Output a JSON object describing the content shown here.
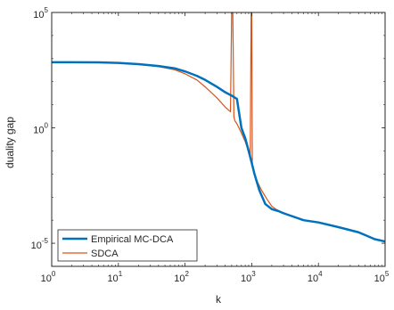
{
  "chart_data": {
    "type": "line",
    "xlabel": "k",
    "ylabel": "duality gap",
    "xscale": "log",
    "yscale": "log",
    "xlim": [
      1,
      100000
    ],
    "ylim": [
      1e-06,
      100000
    ],
    "x_ticks": [
      {
        "base": "10",
        "exp": "0"
      },
      {
        "base": "10",
        "exp": "1"
      },
      {
        "base": "10",
        "exp": "2"
      },
      {
        "base": "10",
        "exp": "3"
      },
      {
        "base": "10",
        "exp": "4"
      },
      {
        "base": "10",
        "exp": "5"
      }
    ],
    "y_ticks": [
      {
        "base": "10",
        "exp": "-5",
        "value": 1e-05
      },
      {
        "base": "10",
        "exp": "0",
        "value": 1
      },
      {
        "base": "10",
        "exp": "5",
        "value": 100000
      }
    ],
    "grid": false,
    "legend_position": "bottom-left",
    "series": [
      {
        "name": "Empirical MC-DCA",
        "color": "#0072BD",
        "x": [
          1,
          2,
          5,
          10,
          20,
          40,
          70,
          100,
          150,
          200,
          300,
          400,
          500,
          600,
          700,
          800,
          900,
          1000,
          1100,
          1300,
          1600,
          2000,
          2500,
          3000,
          4000,
          6000,
          10000,
          20000,
          40000,
          70000,
          100000
        ],
        "y": [
          700,
          700,
          690,
          650,
          580,
          480,
          380,
          280,
          180,
          120,
          60,
          35,
          25,
          18,
          1,
          0.35,
          0.1,
          0.03,
          0.01,
          0.002,
          0.0005,
          0.0003,
          0.00025,
          0.0002,
          0.00015,
          0.0001,
          8e-05,
          5e-05,
          3e-05,
          1.5e-05,
          1.2e-05
        ]
      },
      {
        "name": "SDCA",
        "color": "#D95319",
        "x": [
          1,
          2,
          5,
          10,
          20,
          40,
          70,
          100,
          150,
          200,
          300,
          400,
          480,
          500,
          520,
          540,
          560,
          600,
          700,
          800,
          850,
          900,
          950,
          980,
          1000,
          1020,
          1050,
          1100,
          1200,
          1400,
          1700,
          2000,
          2300,
          2600,
          3000,
          4000,
          6000,
          10000,
          20000,
          40000,
          70000,
          100000
        ],
        "y": [
          700,
          700,
          690,
          650,
          570,
          450,
          330,
          220,
          120,
          60,
          20,
          8,
          5,
          100000,
          100000,
          3,
          2,
          1.5,
          0.6,
          0.25,
          0.15,
          0.08,
          0.05,
          100000,
          100000,
          0.03,
          0.02,
          0.01,
          0.005,
          0.002,
          0.0008,
          0.0004,
          0.0003,
          0.00025,
          0.0002,
          0.00015,
          0.0001,
          8e-05,
          5e-05,
          3e-05,
          1.5e-05,
          1.2e-05
        ]
      }
    ]
  }
}
